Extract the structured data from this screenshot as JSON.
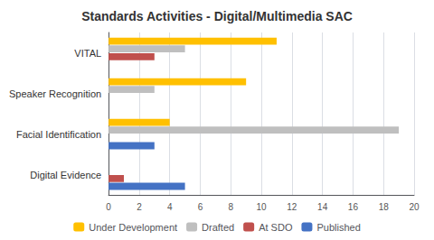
{
  "chart_data": {
    "type": "bar",
    "orientation": "horizontal",
    "title": "Standards Activities - Digital/Multimedia SAC",
    "categories": [
      "Digital Evidence",
      "Facial Identification",
      "Speaker Recognition",
      "VITAL"
    ],
    "series": [
      {
        "name": "Under Development",
        "color": "#FFC000",
        "values": [
          0,
          4,
          9,
          11
        ]
      },
      {
        "name": "Drafted",
        "color": "#BFBFBF",
        "values": [
          0,
          19,
          3,
          5
        ]
      },
      {
        "name": "At SDO",
        "color": "#C0504D",
        "values": [
          1,
          0,
          0,
          3
        ]
      },
      {
        "name": "Published",
        "color": "#4472C4",
        "values": [
          5,
          3,
          0,
          0
        ]
      }
    ],
    "xlim": [
      0,
      20
    ],
    "xticks": [
      0,
      2,
      4,
      6,
      8,
      10,
      12,
      14,
      16,
      18,
      20
    ],
    "grid": true,
    "legend": "bottom"
  }
}
